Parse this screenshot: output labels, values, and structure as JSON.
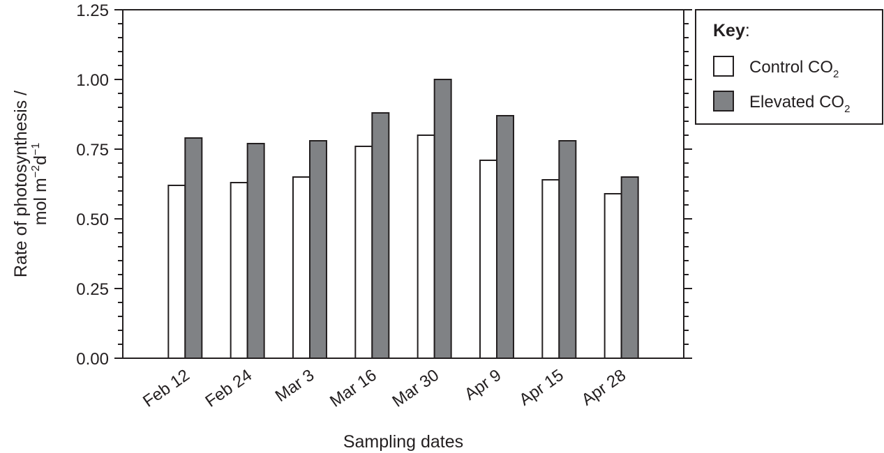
{
  "chart_data": {
    "type": "bar",
    "xlabel": "Sampling dates",
    "ylabel": {
      "line1": "Rate of photosynthesis /",
      "line2_base": "mol m",
      "line2_exp1": "−2",
      "line2_mid": "d",
      "line2_exp2": "−1"
    },
    "categories": [
      "Feb 12",
      "Feb 24",
      "Mar 3",
      "Mar 16",
      "Mar 30",
      "Apr 9",
      "Apr 15",
      "Apr 28"
    ],
    "series": [
      {
        "name": "Control CO2",
        "label_base": "Control CO",
        "label_sub": "2",
        "color": "#ffffff",
        "values": [
          0.62,
          0.63,
          0.65,
          0.76,
          0.8,
          0.71,
          0.64,
          0.59
        ]
      },
      {
        "name": "Elevated CO2",
        "label_base": "Elevated CO",
        "label_sub": "2",
        "color": "#808285",
        "values": [
          0.79,
          0.77,
          0.78,
          0.88,
          1.0,
          0.87,
          0.78,
          0.65
        ]
      }
    ],
    "ylim": [
      0,
      1.25
    ],
    "yticks": [
      "0.00",
      "0.25",
      "0.50",
      "0.75",
      "1.00",
      "1.25"
    ],
    "grid": false,
    "legend": {
      "title": "Key",
      "title_suffix": ":",
      "placement": "right"
    }
  }
}
